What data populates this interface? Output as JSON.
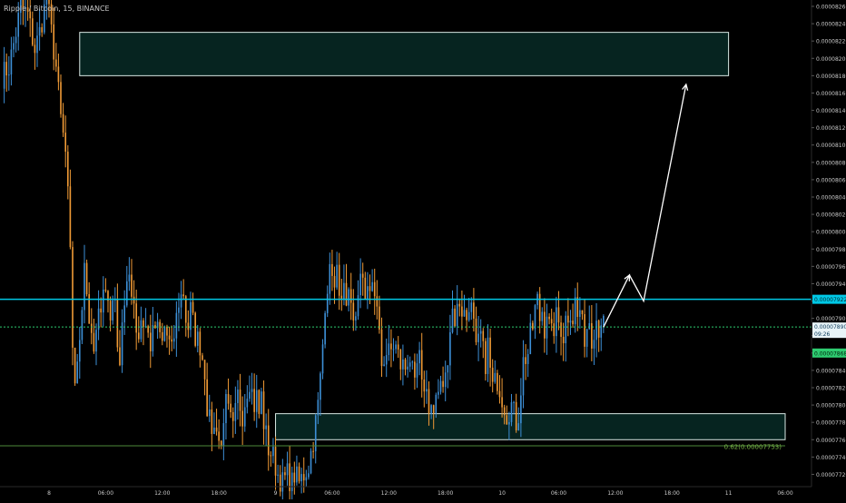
{
  "header": {
    "symbol": "Ripple / Bitcoin, 15, BINANCE"
  },
  "colors": {
    "background": "#000000",
    "candle_up": "#3d8fd6",
    "candle_down": "#ef9a36",
    "zone_fill": "#062420",
    "zone_stroke": "#d8e8e4",
    "resistance_line": "#00c8e6",
    "price_line": "#2ecc71",
    "fib_line": "#4e8a3a",
    "fib_text": "#7ab648",
    "arrow": "#ffffff",
    "axis_text": "#c8c8c8"
  },
  "labels": {
    "resistance_price": "0.00007922",
    "current_price": "0.00007890",
    "current_price_time": "09:26",
    "price_badge": "0.00007868",
    "fib": "0.62(0.00007753)"
  },
  "chart_data": {
    "type": "candlestick",
    "title": "Ripple / Bitcoin, 15, BINANCE",
    "ylim": [
      7.71e-05,
      8.26e-05
    ],
    "y_ticks": [
      "0.00008260",
      "0.00008240",
      "0.00008220",
      "0.00008200",
      "0.00008180",
      "0.00008160",
      "0.00008140",
      "0.00008120",
      "0.00008100",
      "0.00008080",
      "0.00008060",
      "0.00008040",
      "0.00008020",
      "0.00008000",
      "0.00007980",
      "0.00007960",
      "0.00007940",
      "0.00007920",
      "0.00007900",
      "0.00007880",
      "0.00007860",
      "0.00007840",
      "0.00007820",
      "0.00007800",
      "0.00007780",
      "0.00007760",
      "0.00007740",
      "0.00007720"
    ],
    "x_ticks": [
      {
        "label": "8",
        "t": 0
      },
      {
        "label": "06:00",
        "t": 24
      },
      {
        "label": "12:00",
        "t": 48
      },
      {
        "label": "18:00",
        "t": 72
      },
      {
        "label": "9",
        "t": 96
      },
      {
        "label": "06:00",
        "t": 120
      },
      {
        "label": "12:00",
        "t": 144
      },
      {
        "label": "18:00",
        "t": 168
      },
      {
        "label": "10",
        "t": 192
      },
      {
        "label": "06:00",
        "t": 216
      },
      {
        "label": "12:00",
        "t": 240
      },
      {
        "label": "18:00",
        "t": 264
      },
      {
        "label": "11",
        "t": 288
      },
      {
        "label": "06:00",
        "t": 312
      }
    ],
    "close_path": [
      [
        -20,
        8.18e-05
      ],
      [
        -17,
        8.19e-05
      ],
      [
        -14,
        8.23e-05
      ],
      [
        -12,
        8.26e-05
      ],
      [
        -9,
        8.25e-05
      ],
      [
        -6,
        8.21e-05
      ],
      [
        -4,
        8.23e-05
      ],
      [
        -1,
        8.27e-05
      ],
      [
        0,
        8.25e-05
      ],
      [
        3,
        8.19e-05
      ],
      [
        5,
        8.13e-05
      ],
      [
        7,
        8.09e-05
      ],
      [
        8,
        8.04e-05
      ],
      [
        9,
        7.97e-05
      ],
      [
        10,
        7.87e-05
      ],
      [
        11,
        7.83e-05
      ],
      [
        12,
        7.84e-05
      ],
      [
        14,
        7.92e-05
      ],
      [
        15,
        7.97e-05
      ],
      [
        16,
        7.93e-05
      ],
      [
        17,
        7.9e-05
      ],
      [
        18,
        7.87e-05
      ],
      [
        19,
        7.86e-05
      ],
      [
        21,
        7.9e-05
      ],
      [
        23,
        7.94e-05
      ],
      [
        25,
        7.92e-05
      ],
      [
        26,
        7.9e-05
      ],
      [
        27,
        7.93e-05
      ],
      [
        28,
        7.91e-05
      ],
      [
        29,
        7.88e-05
      ],
      [
        30,
        7.85e-05
      ],
      [
        31,
        7.9e-05
      ],
      [
        32,
        7.91e-05
      ],
      [
        34,
        7.95e-05
      ],
      [
        36,
        7.92e-05
      ],
      [
        37,
        7.89e-05
      ],
      [
        38,
        7.88e-05
      ],
      [
        39,
        7.9e-05
      ],
      [
        41,
        7.89e-05
      ],
      [
        43,
        7.87e-05
      ],
      [
        45,
        7.89e-05
      ],
      [
        47,
        7.88e-05
      ],
      [
        48,
        7.87e-05
      ],
      [
        49,
        7.89e-05
      ],
      [
        50,
        7.88e-05
      ],
      [
        52,
        7.86e-05
      ],
      [
        54,
        7.9e-05
      ],
      [
        55,
        7.92e-05
      ],
      [
        57,
        7.93e-05
      ],
      [
        58,
        7.9e-05
      ],
      [
        59,
        7.89e-05
      ],
      [
        60,
        7.91e-05
      ],
      [
        62,
        7.88e-05
      ],
      [
        64,
        7.87e-05
      ],
      [
        66,
        7.84e-05
      ],
      [
        67,
        7.8e-05
      ],
      [
        68,
        7.78e-05
      ],
      [
        70,
        7.77e-05
      ],
      [
        71,
        7.78e-05
      ],
      [
        72,
        7.76e-05
      ],
      [
        73,
        7.75e-05
      ],
      [
        74,
        7.79e-05
      ],
      [
        75,
        7.8e-05
      ],
      [
        77,
        7.78e-05
      ],
      [
        78,
        7.77e-05
      ],
      [
        79,
        7.79e-05
      ],
      [
        80,
        7.81e-05
      ],
      [
        81,
        7.8e-05
      ],
      [
        82,
        7.79e-05
      ],
      [
        84,
        7.82e-05
      ],
      [
        85,
        7.83e-05
      ],
      [
        87,
        7.8e-05
      ],
      [
        88,
        7.81e-05
      ],
      [
        89,
        7.79e-05
      ],
      [
        90,
        7.81e-05
      ],
      [
        91,
        7.78e-05
      ],
      [
        93,
        7.75e-05
      ],
      [
        95,
        7.74e-05
      ],
      [
        96,
        7.73e-05
      ],
      [
        97,
        7.72e-05
      ],
      [
        99,
        7.71e-05
      ],
      [
        101,
        7.72e-05
      ],
      [
        103,
        7.71e-05
      ],
      [
        104,
        7.72e-05
      ],
      [
        106,
        7.71e-05
      ],
      [
        108,
        7.72e-05
      ],
      [
        110,
        7.73e-05
      ],
      [
        112,
        7.76e-05
      ],
      [
        114,
        7.8e-05
      ],
      [
        115,
        7.83e-05
      ],
      [
        116,
        7.87e-05
      ],
      [
        117,
        7.92e-05
      ],
      [
        118,
        7.94e-05
      ],
      [
        119,
        7.95e-05
      ],
      [
        120,
        7.96e-05
      ],
      [
        121,
        7.93e-05
      ],
      [
        122,
        7.95e-05
      ],
      [
        123,
        7.94e-05
      ],
      [
        124,
        7.91e-05
      ],
      [
        125,
        7.93e-05
      ],
      [
        126,
        7.9e-05
      ],
      [
        127,
        7.92e-05
      ],
      [
        128,
        7.91e-05
      ],
      [
        129,
        7.9e-05
      ],
      [
        131,
        7.92e-05
      ],
      [
        132,
        7.94e-05
      ],
      [
        133,
        7.95e-05
      ],
      [
        134,
        7.93e-05
      ],
      [
        135,
        7.94e-05
      ],
      [
        136,
        7.92e-05
      ],
      [
        137,
        7.94e-05
      ],
      [
        138,
        7.93e-05
      ],
      [
        139,
        7.91e-05
      ],
      [
        140,
        7.88e-05
      ],
      [
        141,
        7.85e-05
      ],
      [
        142,
        7.84e-05
      ],
      [
        143,
        7.86e-05
      ],
      [
        144,
        7.88e-05
      ],
      [
        145,
        7.87e-05
      ],
      [
        146,
        7.85e-05
      ],
      [
        148,
        7.86e-05
      ],
      [
        149,
        7.83e-05
      ],
      [
        151,
        7.85e-05
      ],
      [
        152,
        7.84e-05
      ],
      [
        153,
        7.86e-05
      ],
      [
        154,
        7.85e-05
      ],
      [
        155,
        7.83e-05
      ],
      [
        156,
        7.84e-05
      ],
      [
        157,
        7.85e-05
      ],
      [
        158,
        7.83e-05
      ],
      [
        160,
        7.82e-05
      ],
      [
        161,
        7.8e-05
      ],
      [
        163,
        7.79e-05
      ],
      [
        164,
        7.81e-05
      ],
      [
        166,
        7.82e-05
      ],
      [
        168,
        7.83e-05
      ],
      [
        170,
        7.89e-05
      ],
      [
        171,
        7.91e-05
      ],
      [
        172,
        7.9e-05
      ],
      [
        174,
        7.92e-05
      ],
      [
        175,
        7.91e-05
      ],
      [
        177,
        7.9e-05
      ],
      [
        178,
        7.92e-05
      ],
      [
        179,
        7.91e-05
      ],
      [
        180,
        7.89e-05
      ],
      [
        181,
        7.86e-05
      ],
      [
        182,
        7.87e-05
      ],
      [
        183,
        7.88e-05
      ],
      [
        184,
        7.86e-05
      ],
      [
        185,
        7.85e-05
      ],
      [
        186,
        7.87e-05
      ],
      [
        187,
        7.84e-05
      ],
      [
        188,
        7.82e-05
      ],
      [
        190,
        7.83e-05
      ],
      [
        192,
        7.81e-05
      ],
      [
        194,
        7.79e-05
      ],
      [
        196,
        7.8e-05
      ],
      [
        198,
        7.78e-05
      ],
      [
        199,
        7.79e-05
      ],
      [
        200,
        7.82e-05
      ],
      [
        201,
        7.85e-05
      ],
      [
        203,
        7.86e-05
      ],
      [
        204,
        7.88e-05
      ],
      [
        205,
        7.89e-05
      ],
      [
        206,
        7.91e-05
      ],
      [
        207,
        7.92e-05
      ],
      [
        208,
        7.9e-05
      ],
      [
        209,
        7.91e-05
      ],
      [
        210,
        7.89e-05
      ],
      [
        211,
        7.91e-05
      ],
      [
        212,
        7.89e-05
      ],
      [
        213,
        7.88e-05
      ],
      [
        215,
        7.9e-05
      ],
      [
        217,
        7.89e-05
      ],
      [
        218,
        7.88e-05
      ],
      [
        219,
        7.9e-05
      ],
      [
        221,
        7.91e-05
      ],
      [
        222,
        7.9e-05
      ],
      [
        223,
        7.92e-05
      ],
      [
        224,
        7.9e-05
      ],
      [
        225,
        7.91e-05
      ],
      [
        226,
        7.89e-05
      ],
      [
        227,
        7.88e-05
      ],
      [
        228,
        7.89e-05
      ],
      [
        229,
        7.9e-05
      ],
      [
        230,
        7.88e-05
      ],
      [
        231,
        7.89e-05
      ],
      [
        232,
        7.9e-05
      ],
      [
        233,
        7.89e-05
      ],
      [
        234,
        7.9e-05
      ],
      [
        235,
        7.89e-05
      ]
    ],
    "supply_zone": {
      "t_start": 13,
      "t_end": 288,
      "top": 8.23e-05,
      "bottom": 8.18e-05
    },
    "demand_zone": {
      "t_start": 96,
      "t_end": 312,
      "top": 7.79e-05,
      "bottom": 7.76e-05
    },
    "resistance": 7.922e-05,
    "current_price": 7.89e-05,
    "fib_level": 7.753e-05,
    "projection_path": [
      [
        235,
        7.89e-05
      ],
      [
        246,
        7.95e-05
      ],
      [
        252,
        7.92e-05
      ],
      [
        270,
        8.17e-05
      ]
    ]
  }
}
